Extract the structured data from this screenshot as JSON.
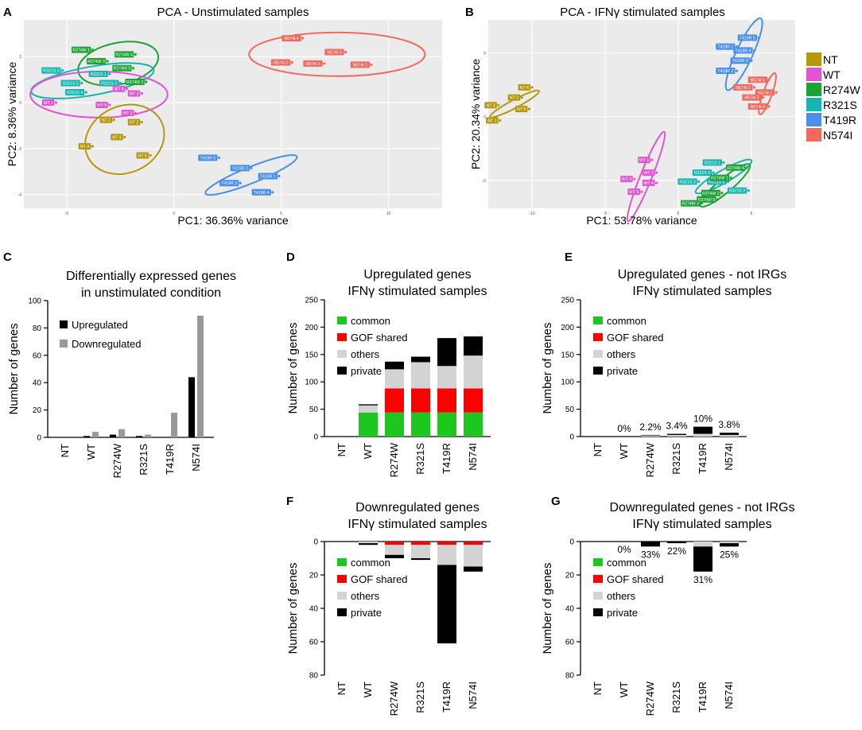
{
  "colors": {
    "NT": "#b5980e",
    "WT": "#e354d3",
    "R274W": "#1ea135",
    "R321S": "#17b4b0",
    "T419R": "#4a8fe8",
    "N574I": "#ef6a5f",
    "common": "#1ec71e",
    "gof": "#ff0000",
    "others": "#d3d3d3",
    "private": "#000000",
    "up": "#000000",
    "down": "#999999"
  },
  "legend": {
    "items": [
      "NT",
      "WT",
      "R274W",
      "R321S",
      "T419R",
      "N574I"
    ]
  },
  "chart_data": [
    {
      "id": "A",
      "type": "scatter",
      "letter": "A",
      "title": "PCA - Unstimulated samples",
      "xlabel": "PC1: 36.36% variance",
      "ylabel": "PC2: 8.36% variance",
      "xlim": [
        -7,
        12.5
      ],
      "ylim": [
        -4.6,
        3.6
      ],
      "xticks": [
        {
          "v": -5,
          "t": "-5"
        },
        {
          "v": 0,
          "t": "0"
        },
        {
          "v": 5,
          "t": "5"
        },
        {
          "v": 10,
          "t": "10"
        }
      ],
      "yticks": [
        {
          "v": 2,
          "t": "2"
        },
        {
          "v": 0,
          "t": "0"
        },
        {
          "v": -2,
          "t": "-2"
        },
        {
          "v": -4,
          "t": "-4"
        }
      ],
      "points": [
        {
          "g": "R274W",
          "l": "R274W 1",
          "x": -3.8,
          "y": 2.3
        },
        {
          "g": "R274W",
          "l": "R274W 4",
          "x": -1.8,
          "y": 2.1
        },
        {
          "g": "R274W",
          "l": "R274W 3",
          "x": -3.1,
          "y": 1.8
        },
        {
          "g": "R274W",
          "l": "R274W 5",
          "x": -1.9,
          "y": 1.5
        },
        {
          "g": "R274W",
          "l": "R274W 2",
          "x": -1.3,
          "y": 0.9
        },
        {
          "g": "R321S",
          "l": "R321S 3",
          "x": -5.2,
          "y": 1.4
        },
        {
          "g": "R321S",
          "l": "R321S 1",
          "x": -3.0,
          "y": 1.25
        },
        {
          "g": "R321S",
          "l": "R321S 2",
          "x": -2.5,
          "y": 0.85
        },
        {
          "g": "R321S",
          "l": "R321S 5",
          "x": -4.3,
          "y": 0.85
        },
        {
          "g": "R321S",
          "l": "R321S 4",
          "x": -4.1,
          "y": 0.45
        },
        {
          "g": "WT",
          "l": "WT 4",
          "x": -2.2,
          "y": 0.6
        },
        {
          "g": "WT",
          "l": "WT 3",
          "x": -1.5,
          "y": 0.4
        },
        {
          "g": "WT",
          "l": "WT 1",
          "x": -5.5,
          "y": 0.0
        },
        {
          "g": "WT",
          "l": "WT 5",
          "x": -3.0,
          "y": -0.1
        },
        {
          "g": "WT",
          "l": "WT 2",
          "x": -1.8,
          "y": -0.45
        },
        {
          "g": "NT",
          "l": "NT 1",
          "x": -2.8,
          "y": -0.75
        },
        {
          "g": "NT",
          "l": "NT 2",
          "x": -1.5,
          "y": -0.85
        },
        {
          "g": "NT",
          "l": "NT 3",
          "x": -2.3,
          "y": -1.5
        },
        {
          "g": "NT",
          "l": "NT 4",
          "x": -3.8,
          "y": -1.9
        },
        {
          "g": "NT",
          "l": "NT 5",
          "x": -1.1,
          "y": -2.3
        },
        {
          "g": "T419R",
          "l": "T419R 5",
          "x": 2.1,
          "y": -2.4
        },
        {
          "g": "T419R",
          "l": "T419R 2",
          "x": 3.6,
          "y": -2.85
        },
        {
          "g": "T419R",
          "l": "T419R 1",
          "x": 4.9,
          "y": -3.2
        },
        {
          "g": "T419R",
          "l": "T419R 3",
          "x": 3.1,
          "y": -3.5
        },
        {
          "g": "T419R",
          "l": "T419R 4",
          "x": 4.6,
          "y": -3.9
        },
        {
          "g": "N574I",
          "l": "N574I 4",
          "x": 6.0,
          "y": 2.8
        },
        {
          "g": "N574I",
          "l": "N574I 3",
          "x": 5.5,
          "y": 1.75
        },
        {
          "g": "N574I",
          "l": "N574I 2",
          "x": 7.0,
          "y": 1.7
        },
        {
          "g": "N574I",
          "l": "N574I 5",
          "x": 8.0,
          "y": 2.2
        },
        {
          "g": "N574I",
          "l": "N574I 1",
          "x": 9.2,
          "y": 1.65
        }
      ],
      "ellipses": [
        {
          "g": "N574I",
          "cx": 7.6,
          "cy": 2.1,
          "rx": 4.1,
          "ry": 0.95,
          "rot": 0
        },
        {
          "g": "R274W",
          "cx": -2.6,
          "cy": 1.7,
          "rx": 1.9,
          "ry": 0.9,
          "rot": -12
        },
        {
          "g": "R321S",
          "cx": -3.8,
          "cy": 0.95,
          "rx": 2.9,
          "ry": 0.62,
          "rot": -10
        },
        {
          "g": "WT",
          "cx": -3.5,
          "cy": 0.35,
          "rx": 3.2,
          "ry": 1.0,
          "rot": 0
        },
        {
          "g": "NT",
          "cx": -2.3,
          "cy": -1.6,
          "rx": 1.9,
          "ry": 1.45,
          "rot": -25
        },
        {
          "g": "T419R",
          "cx": 3.6,
          "cy": -3.15,
          "rx": 2.3,
          "ry": 0.35,
          "rot": -22
        }
      ]
    },
    {
      "id": "B",
      "type": "scatter",
      "letter": "B",
      "title": "PCA - IFNγ stimulated samples",
      "xlabel": "PC1: 53.78% variance",
      "ylabel": "PC2: 20.34% variance",
      "xlim": [
        -13,
        8
      ],
      "ylim": [
        -7.2,
        7.6
      ],
      "xticks": [
        {
          "v": -10,
          "t": "-10"
        },
        {
          "v": -5,
          "t": "-5"
        },
        {
          "v": 0,
          "t": "0"
        },
        {
          "v": 5,
          "t": "5"
        }
      ],
      "yticks": [
        {
          "v": 5,
          "t": "5"
        },
        {
          "v": 0,
          "t": "0"
        },
        {
          "v": -5,
          "t": "-5"
        }
      ],
      "points": [
        {
          "g": "T419R",
          "l": "T419R 5",
          "x": 5.5,
          "y": 6.2
        },
        {
          "g": "T419R",
          "l": "T419R 1",
          "x": 4.0,
          "y": 5.5
        },
        {
          "g": "T419R",
          "l": "T419R 4",
          "x": 5.2,
          "y": 5.2
        },
        {
          "g": "T419R",
          "l": "T419R 3",
          "x": 5.0,
          "y": 4.4
        },
        {
          "g": "T419R",
          "l": "T419R 2",
          "x": 4.0,
          "y": 3.6
        },
        {
          "g": "N574I",
          "l": "N574I 5",
          "x": 6.2,
          "y": 2.9
        },
        {
          "g": "N574I",
          "l": "N574I 2",
          "x": 5.2,
          "y": 2.3
        },
        {
          "g": "N574I",
          "l": "N574I 1",
          "x": 6.7,
          "y": 1.9
        },
        {
          "g": "N574I",
          "l": "N574I 3",
          "x": 5.8,
          "y": 1.5
        },
        {
          "g": "N574I",
          "l": "N574I 4",
          "x": 6.2,
          "y": 0.8
        },
        {
          "g": "NT",
          "l": "NT 4",
          "x": -10.0,
          "y": 2.3
        },
        {
          "g": "NT",
          "l": "NT 2",
          "x": -10.7,
          "y": 1.5
        },
        {
          "g": "NT",
          "l": "NT 3",
          "x": -12.3,
          "y": 0.9
        },
        {
          "g": "NT",
          "l": "NT 5",
          "x": -10.2,
          "y": 0.6
        },
        {
          "g": "NT",
          "l": "NT 1",
          "x": -12.2,
          "y": -0.3
        },
        {
          "g": "WT",
          "l": "WT 1",
          "x": -1.8,
          "y": -3.4
        },
        {
          "g": "WT",
          "l": "WT 2",
          "x": -1.5,
          "y": -4.4
        },
        {
          "g": "WT",
          "l": "WT 3",
          "x": -3.0,
          "y": -4.9
        },
        {
          "g": "WT",
          "l": "WT 4",
          "x": -1.5,
          "y": -5.2
        },
        {
          "g": "WT",
          "l": "WT 5",
          "x": -2.5,
          "y": -5.9
        },
        {
          "g": "R321S",
          "l": "R321S 1",
          "x": 3.1,
          "y": -3.6
        },
        {
          "g": "R321S",
          "l": "R321S 4",
          "x": 2.4,
          "y": -4.4
        },
        {
          "g": "R321S",
          "l": "R321S 3",
          "x": 1.4,
          "y": -5.1
        },
        {
          "g": "R321S",
          "l": "R321S 5",
          "x": 3.4,
          "y": -5.1
        },
        {
          "g": "R321S",
          "l": "R321S 2",
          "x": 4.8,
          "y": -5.8
        },
        {
          "g": "R274W",
          "l": "R274W 4",
          "x": 4.7,
          "y": -4.0
        },
        {
          "g": "R274W",
          "l": "R274W 1",
          "x": 3.6,
          "y": -4.8
        },
        {
          "g": "R274W",
          "l": "R274W 2",
          "x": 3.0,
          "y": -6.0
        },
        {
          "g": "R274W",
          "l": "R274W 5",
          "x": 2.7,
          "y": -6.5
        },
        {
          "g": "R274W",
          "l": "R274W 3",
          "x": 1.6,
          "y": -6.8
        }
      ],
      "ellipses": [
        {
          "g": "T419R",
          "cx": 4.5,
          "cy": 4.9,
          "rx": 2.7,
          "ry": 0.65,
          "rot": -65
        },
        {
          "g": "N574I",
          "cx": 6.1,
          "cy": 1.8,
          "rx": 1.5,
          "ry": 0.35,
          "rot": -70
        },
        {
          "g": "NT",
          "cx": -11.2,
          "cy": 1.0,
          "rx": 1.9,
          "ry": 0.32,
          "rot": -28
        },
        {
          "g": "WT",
          "cx": -2.2,
          "cy": -4.7,
          "rx": 3.3,
          "ry": 0.45,
          "rot": -68
        },
        {
          "g": "R321S",
          "cx": 3.1,
          "cy": -4.7,
          "rx": 2.2,
          "ry": 0.5,
          "rot": -30
        },
        {
          "g": "R274W",
          "cx": 3.2,
          "cy": -5.4,
          "rx": 2.2,
          "ry": 0.55,
          "rot": -40
        }
      ]
    },
    {
      "id": "C",
      "type": "bar",
      "letter": "C",
      "title": [
        "Differentially expressed genes",
        "in unstimulated condition"
      ],
      "ylabel": "Number of genes",
      "ylim": [
        0,
        100
      ],
      "ticks": [
        0,
        20,
        40,
        60,
        80,
        100
      ],
      "categories": [
        "NT",
        "WT",
        "R274W",
        "R321S",
        "T419R",
        "N574I"
      ],
      "series": [
        {
          "name": "Upregulated",
          "key": "up",
          "values": [
            0,
            1,
            2,
            1,
            0,
            44
          ]
        },
        {
          "name": "Downregulated",
          "key": "down",
          "values": [
            0,
            4,
            6,
            2,
            18,
            89
          ]
        }
      ]
    },
    {
      "id": "D",
      "type": "bar",
      "letter": "D",
      "title": [
        "Upregulated genes",
        "IFNγ stimulated samples"
      ],
      "ylabel": "Number of genes",
      "ylim": [
        0,
        250
      ],
      "ticks": [
        0,
        50,
        100,
        150,
        200,
        250
      ],
      "categories": [
        "NT",
        "WT",
        "R274W",
        "R321S",
        "T419R",
        "N574I"
      ],
      "series": [
        {
          "name": "common",
          "key": "common",
          "values": [
            0,
            44,
            44,
            44,
            44,
            44
          ]
        },
        {
          "name": "GOF shared",
          "key": "gof",
          "values": [
            0,
            0,
            44,
            44,
            44,
            44
          ]
        },
        {
          "name": "others",
          "key": "others",
          "values": [
            0,
            13,
            35,
            48,
            41,
            60
          ]
        },
        {
          "name": "private",
          "key": "private",
          "values": [
            0,
            2,
            14,
            10,
            51,
            35
          ]
        }
      ],
      "labels": []
    },
    {
      "id": "E",
      "type": "bar",
      "letter": "E",
      "title": [
        "Upregulated genes - not IRGs",
        "IFNγ stimulated samples"
      ],
      "ylabel": "Number of genes",
      "ylim": [
        0,
        250
      ],
      "ticks": [
        0,
        50,
        100,
        150,
        200,
        250
      ],
      "categories": [
        "NT",
        "WT",
        "R274W",
        "R321S",
        "T419R",
        "N574I"
      ],
      "series": [
        {
          "name": "common",
          "key": "common",
          "values": [
            0,
            0,
            0,
            0,
            0,
            0
          ]
        },
        {
          "name": "GOF shared",
          "key": "gof",
          "values": [
            0,
            0,
            0,
            0,
            0,
            0
          ]
        },
        {
          "name": "others",
          "key": "others",
          "values": [
            0,
            0,
            2,
            3,
            5,
            3
          ]
        },
        {
          "name": "private",
          "key": "private",
          "values": [
            0,
            0,
            1,
            2,
            13,
            4
          ]
        }
      ],
      "labels": [
        "",
        "0%",
        "2.2%",
        "3.4%",
        "10%",
        "3.8%"
      ]
    },
    {
      "id": "F",
      "type": "bar",
      "letter": "F",
      "title": [
        "Downregulated genes",
        "IFNγ stimulated samples"
      ],
      "ylabel": "Number of genes",
      "ylim": [
        0,
        80
      ],
      "inverted": true,
      "ticks": [
        0,
        20,
        40,
        60,
        80
      ],
      "categories": [
        "NT",
        "WT",
        "R274W",
        "R321S",
        "T419R",
        "N574I"
      ],
      "series": [
        {
          "name": "common",
          "key": "common",
          "values": [
            0,
            0,
            0,
            0,
            0,
            0
          ]
        },
        {
          "name": "GOF shared",
          "key": "gof",
          "values": [
            0,
            0,
            2,
            2,
            2,
            2
          ]
        },
        {
          "name": "others",
          "key": "others",
          "values": [
            0,
            1,
            6,
            8,
            12,
            13
          ]
        },
        {
          "name": "private",
          "key": "private",
          "values": [
            0,
            1,
            2,
            1,
            47,
            3
          ]
        }
      ],
      "labels": []
    },
    {
      "id": "G",
      "type": "bar",
      "letter": "G",
      "title": [
        "Downregulated genes - not IRGs",
        "IFNγ stimulated samples"
      ],
      "ylabel": "Number of genes",
      "ylim": [
        0,
        80
      ],
      "inverted": true,
      "ticks": [
        0,
        20,
        40,
        60,
        80
      ],
      "categories": [
        "NT",
        "WT",
        "R274W",
        "R321S",
        "T419R",
        "N574I"
      ],
      "series": [
        {
          "name": "common",
          "key": "common",
          "values": [
            0,
            0,
            0,
            0,
            0,
            0
          ]
        },
        {
          "name": "GOF shared",
          "key": "gof",
          "values": [
            0,
            0,
            0,
            0,
            0,
            0
          ]
        },
        {
          "name": "others",
          "key": "others",
          "values": [
            0,
            0,
            0,
            0,
            3,
            1
          ]
        },
        {
          "name": "private",
          "key": "private",
          "values": [
            0,
            0,
            3,
            1,
            15,
            2
          ]
        }
      ],
      "labels": [
        "",
        "0%",
        "33%",
        "22%",
        "31%",
        "25%"
      ]
    }
  ]
}
